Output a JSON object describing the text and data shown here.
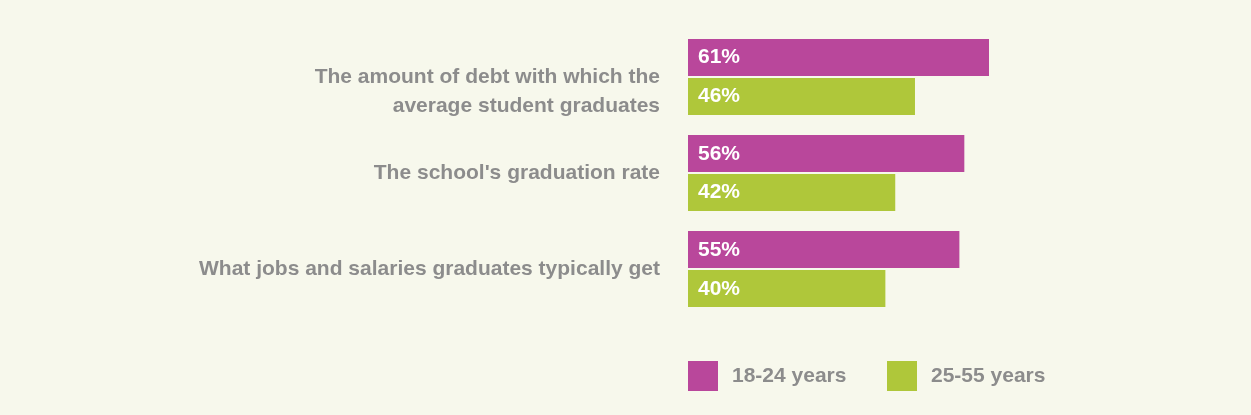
{
  "chart_data": {
    "type": "bar",
    "orientation": "horizontal",
    "categories": [
      "The amount of debt with which the average student graduates",
      "The school's graduation rate",
      "What jobs and salaries graduates typically get"
    ],
    "series": [
      {
        "name": "18-24 years",
        "color": "#b9479b",
        "values": [
          61,
          56,
          55
        ],
        "value_labels": [
          "61%",
          "56%",
          "55%"
        ]
      },
      {
        "name": "25-55 years",
        "color": "#afc73a",
        "values": [
          46,
          42,
          40
        ],
        "value_labels": [
          "46%",
          "42%",
          "40%"
        ]
      }
    ],
    "legend": "bottom",
    "grid": false
  }
}
